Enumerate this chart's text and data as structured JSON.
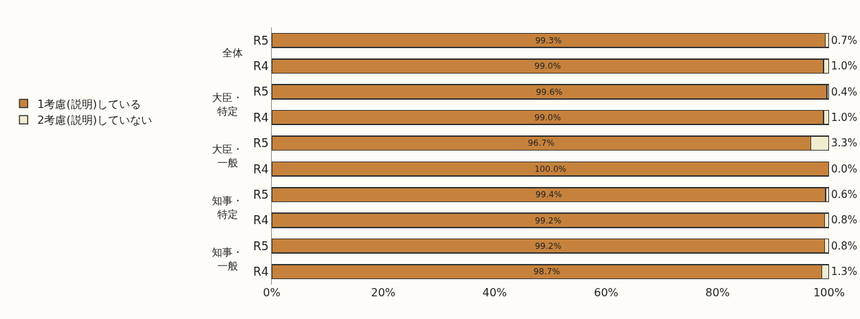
{
  "chart_data": {
    "type": "bar",
    "orientation": "horizontal",
    "stacked": true,
    "categories": [
      "R5",
      "R4",
      "R5",
      "R4",
      "R5",
      "R4",
      "R5",
      "R4",
      "R5",
      "R4"
    ],
    "series": [
      {
        "name": "1考慮(説明)している",
        "color": "#c6823c",
        "values": [
          99.3,
          99.0,
          99.6,
          99.0,
          96.7,
          100.0,
          99.4,
          99.2,
          99.2,
          98.7
        ],
        "value_labels": [
          "99.3%",
          "99.0%",
          "99.6%",
          "99.0%",
          "96.7%",
          "100.0%",
          "99.4%",
          "99.2%",
          "99.2%",
          "98.7%"
        ]
      },
      {
        "name": "2考慮(説明)していない",
        "color": "#f1ebcf",
        "values": [
          0.7,
          1.0,
          0.4,
          1.0,
          3.3,
          0.0,
          0.6,
          0.8,
          0.8,
          1.3
        ],
        "value_labels": [
          "0.7%",
          "1.0%",
          "0.4%",
          "1.0%",
          "3.3%",
          "0.0%",
          "0.6%",
          "0.8%",
          "0.8%",
          "1.3%"
        ]
      }
    ],
    "annotations": [
      "全体",
      "大臣・特定",
      "大臣・一般",
      "知事・特定",
      "知事・一般"
    ],
    "xlim": [
      0,
      100
    ],
    "xticks": [
      {
        "value": 0,
        "label": "0%"
      },
      {
        "value": 20,
        "label": "20%"
      },
      {
        "value": 40,
        "label": "40%"
      },
      {
        "value": 60,
        "label": "60%"
      },
      {
        "value": 80,
        "label": "80%"
      },
      {
        "value": 100,
        "label": "100%"
      }
    ],
    "legend": "left",
    "grid": false
  }
}
